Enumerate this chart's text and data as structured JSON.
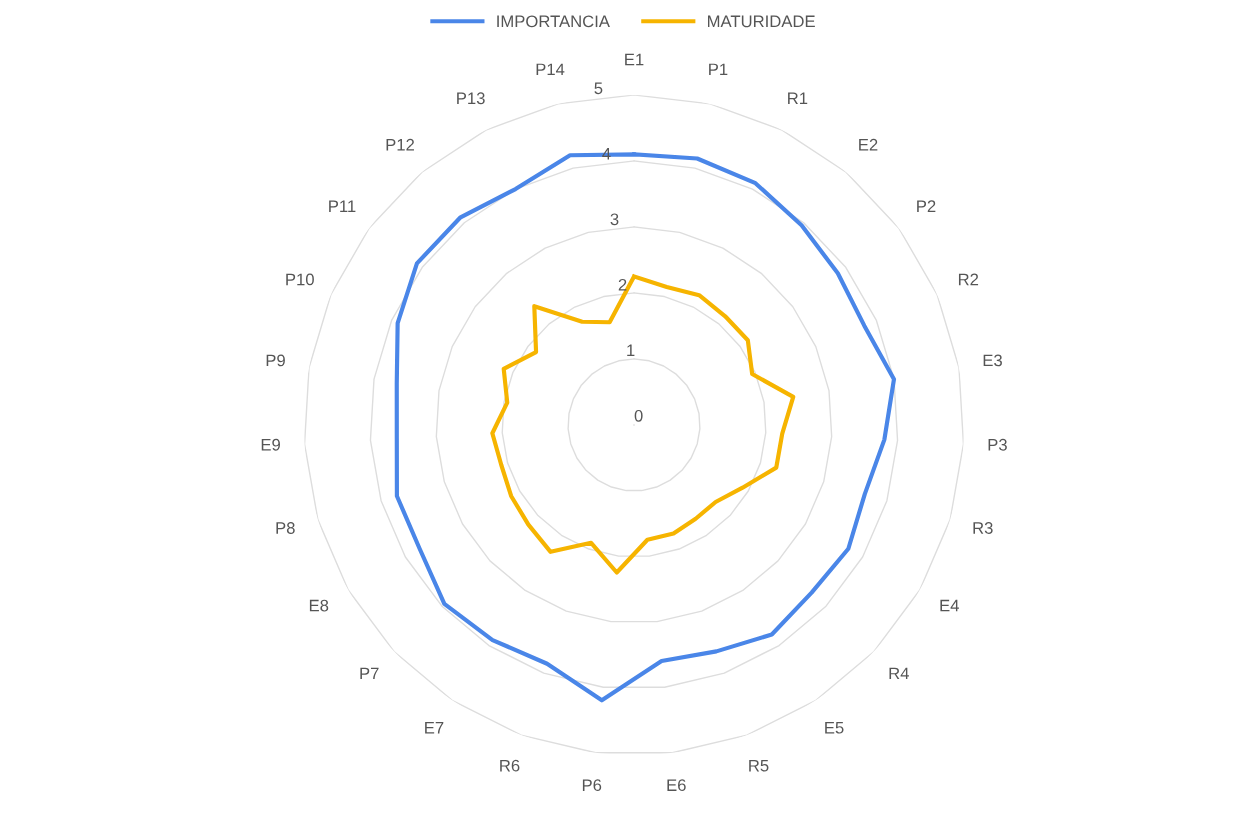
{
  "chart_data": {
    "type": "radar",
    "categories": [
      "E1",
      "P1",
      "R1",
      "E2",
      "P2",
      "R2",
      "E3",
      "P3",
      "R3",
      "E4",
      "R4",
      "E5",
      "R5",
      "E6",
      "P6",
      "R6",
      "E7",
      "P7",
      "E8",
      "P8",
      "E9",
      "P9",
      "P10",
      "P11",
      "P12",
      "P13",
      "P14"
    ],
    "series": [
      {
        "name": "IMPORTANCIA",
        "color": "#4a86e8",
        "values": [
          4.1,
          4.15,
          4.1,
          3.95,
          3.85,
          3.8,
          4.0,
          3.8,
          3.65,
          3.75,
          3.7,
          3.8,
          3.65,
          3.6,
          4.2,
          3.85,
          3.9,
          3.95,
          3.75,
          3.75,
          3.6,
          3.65,
          3.9,
          4.1,
          4.1,
          4.0,
          4.2
        ]
      },
      {
        "name": "MATURIDADE",
        "color": "#f6b400",
        "values": [
          2.25,
          2.15,
          2.2,
          2.15,
          2.15,
          1.95,
          2.45,
          2.25,
          2.25,
          1.9,
          1.7,
          1.7,
          1.75,
          1.75,
          2.25,
          1.9,
          2.3,
          2.2,
          2.15,
          2.1,
          2.15,
          1.95,
          2.15,
          1.85,
          2.35,
          1.75,
          1.6
        ]
      }
    ],
    "ylim": [
      0,
      5
    ],
    "yticks": [
      0,
      1,
      2,
      3,
      4,
      5
    ],
    "grid": true,
    "legend": "top"
  }
}
